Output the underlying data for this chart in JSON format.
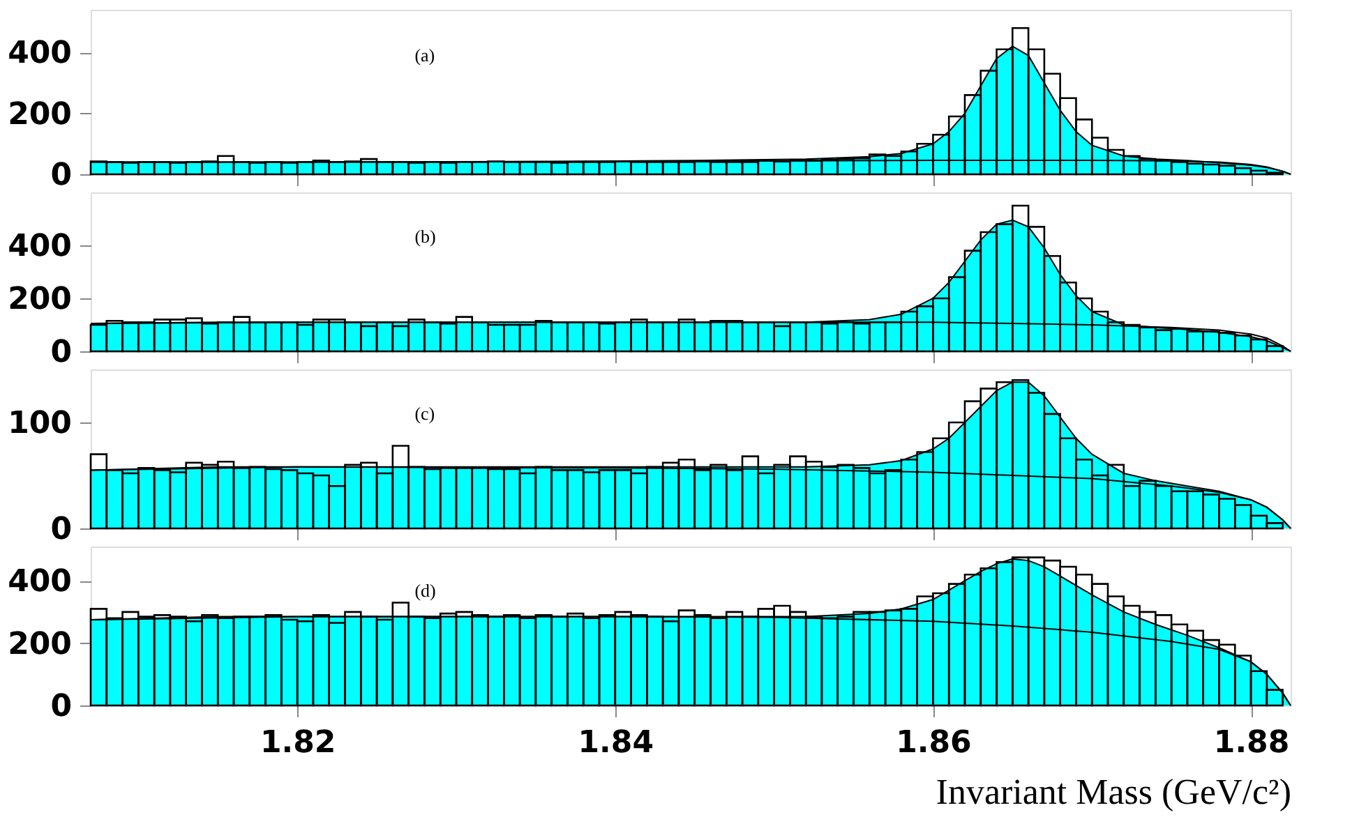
{
  "chart_data": [
    {
      "type": "histogram",
      "annotations": [
        "(a)"
      ],
      "tick_labels": "y",
      "color": "#000000",
      "bins": [
        1.807,
        1.808,
        1.809,
        1.81,
        1.811,
        1.812,
        1.813,
        1.814,
        1.815,
        1.816,
        1.817,
        1.818,
        1.819,
        1.82,
        1.821,
        1.822,
        1.823,
        1.824,
        1.825,
        1.826,
        1.827,
        1.828,
        1.829,
        1.83,
        1.831,
        1.832,
        1.833,
        1.834,
        1.835,
        1.836,
        1.837,
        1.838,
        1.839,
        1.84,
        1.841,
        1.842,
        1.843,
        1.844,
        1.845,
        1.846,
        1.847,
        1.848,
        1.849,
        1.85,
        1.851,
        1.852,
        1.853,
        1.854,
        1.855,
        1.856,
        1.857,
        1.858,
        1.859,
        1.86,
        1.861,
        1.862,
        1.863,
        1.864,
        1.865,
        1.866,
        1.867,
        1.868,
        1.869,
        1.87,
        1.871,
        1.872,
        1.873,
        1.874,
        1.875,
        1.876,
        1.877,
        1.878,
        1.879,
        1.88,
        1.881,
        1.882
      ],
      "values": [
        42,
        40,
        38,
        40,
        40,
        38,
        40,
        42,
        60,
        40,
        38,
        40,
        38,
        40,
        45,
        40,
        42,
        50,
        40,
        40,
        38,
        40,
        38,
        40,
        40,
        42,
        40,
        40,
        40,
        38,
        40,
        40,
        40,
        42,
        40,
        40,
        40,
        40,
        42,
        40,
        40,
        40,
        45,
        42,
        45,
        45,
        48,
        50,
        52,
        65,
        60,
        75,
        100,
        130,
        190,
        260,
        340,
        410,
        480,
        410,
        330,
        250,
        180,
        120,
        80,
        60,
        50,
        45,
        40,
        35,
        32,
        28,
        20,
        12,
        5
      ],
      "series": [
        {
          "type": "area",
          "color": "#00ffff",
          "x": [
            1.807,
            1.815,
            1.825,
            1.835,
            1.845,
            1.852,
            1.856,
            1.858,
            1.86,
            1.861,
            1.862,
            1.863,
            1.864,
            1.865,
            1.866,
            1.867,
            1.868,
            1.869,
            1.87,
            1.872,
            1.874,
            1.876,
            1.878,
            1.88,
            1.881,
            1.882,
            1.8825
          ],
          "values": [
            40,
            40,
            40,
            42,
            45,
            50,
            58,
            68,
            100,
            140,
            200,
            290,
            380,
            420,
            390,
            300,
            210,
            140,
            95,
            60,
            50,
            45,
            38,
            30,
            22,
            10,
            0
          ]
        },
        {
          "type": "line",
          "color": "#000000",
          "x": [
            1.807,
            1.82,
            1.84,
            1.85,
            1.86,
            1.865,
            1.87,
            1.875,
            1.878,
            1.88,
            1.881,
            1.882,
            1.8825
          ],
          "values": [
            40,
            40,
            42,
            44,
            46,
            46,
            46,
            44,
            40,
            32,
            24,
            10,
            0
          ]
        }
      ],
      "xlim": [
        1.807,
        1.8825
      ],
      "xticks": [
        1.82,
        1.84,
        1.86,
        1.88
      ],
      "ylim": [
        0,
        540
      ],
      "yticks": [
        0,
        200,
        400
      ]
    },
    {
      "type": "histogram",
      "annotations": [
        "(b)"
      ],
      "tick_labels": "y",
      "color": "#000000",
      "bins": [
        1.807,
        1.808,
        1.809,
        1.81,
        1.811,
        1.812,
        1.813,
        1.814,
        1.815,
        1.816,
        1.817,
        1.818,
        1.819,
        1.82,
        1.821,
        1.822,
        1.823,
        1.824,
        1.825,
        1.826,
        1.827,
        1.828,
        1.829,
        1.83,
        1.831,
        1.832,
        1.833,
        1.834,
        1.835,
        1.836,
        1.837,
        1.838,
        1.839,
        1.84,
        1.841,
        1.842,
        1.843,
        1.844,
        1.845,
        1.846,
        1.847,
        1.848,
        1.849,
        1.85,
        1.851,
        1.852,
        1.853,
        1.854,
        1.855,
        1.856,
        1.857,
        1.858,
        1.859,
        1.86,
        1.861,
        1.862,
        1.863,
        1.864,
        1.865,
        1.866,
        1.867,
        1.868,
        1.869,
        1.87,
        1.871,
        1.872,
        1.873,
        1.874,
        1.875,
        1.876,
        1.877,
        1.878,
        1.879,
        1.88,
        1.881,
        1.882
      ],
      "values": [
        100,
        115,
        110,
        110,
        120,
        120,
        125,
        105,
        110,
        130,
        110,
        110,
        110,
        100,
        120,
        120,
        110,
        95,
        110,
        95,
        120,
        110,
        105,
        130,
        110,
        100,
        100,
        100,
        115,
        110,
        110,
        110,
        105,
        110,
        120,
        110,
        110,
        120,
        110,
        115,
        115,
        110,
        110,
        95,
        110,
        110,
        105,
        110,
        105,
        110,
        110,
        150,
        170,
        200,
        280,
        380,
        450,
        480,
        550,
        470,
        360,
        260,
        200,
        150,
        110,
        100,
        90,
        80,
        85,
        75,
        75,
        70,
        60,
        45,
        20
      ],
      "series": [
        {
          "type": "area",
          "color": "#00ffff",
          "x": [
            1.807,
            1.815,
            1.825,
            1.835,
            1.845,
            1.852,
            1.856,
            1.858,
            1.86,
            1.861,
            1.862,
            1.863,
            1.864,
            1.865,
            1.866,
            1.867,
            1.868,
            1.869,
            1.87,
            1.872,
            1.874,
            1.876,
            1.878,
            1.88,
            1.881,
            1.882,
            1.8825
          ],
          "values": [
            105,
            110,
            110,
            110,
            110,
            110,
            120,
            140,
            200,
            260,
            340,
            420,
            480,
            495,
            470,
            390,
            290,
            210,
            150,
            100,
            90,
            82,
            72,
            55,
            40,
            15,
            0
          ]
        },
        {
          "type": "line",
          "color": "#000000",
          "x": [
            1.807,
            1.82,
            1.84,
            1.85,
            1.86,
            1.865,
            1.87,
            1.875,
            1.878,
            1.88,
            1.881,
            1.882,
            1.8825
          ],
          "values": [
            105,
            110,
            110,
            110,
            110,
            105,
            100,
            90,
            80,
            65,
            50,
            20,
            0
          ]
        }
      ],
      "xlim": [
        1.807,
        1.8825
      ],
      "xticks": [
        1.82,
        1.84,
        1.86,
        1.88
      ],
      "ylim": [
        0,
        600
      ],
      "yticks": [
        0,
        200,
        400
      ]
    },
    {
      "type": "histogram",
      "annotations": [
        "(c)"
      ],
      "tick_labels": "y",
      "color": "#000000",
      "bins": [
        1.807,
        1.808,
        1.809,
        1.81,
        1.811,
        1.812,
        1.813,
        1.814,
        1.815,
        1.816,
        1.817,
        1.818,
        1.819,
        1.82,
        1.821,
        1.822,
        1.823,
        1.824,
        1.825,
        1.826,
        1.827,
        1.828,
        1.829,
        1.83,
        1.831,
        1.832,
        1.833,
        1.834,
        1.835,
        1.836,
        1.837,
        1.838,
        1.839,
        1.84,
        1.841,
        1.842,
        1.843,
        1.844,
        1.845,
        1.846,
        1.847,
        1.848,
        1.849,
        1.85,
        1.851,
        1.852,
        1.853,
        1.854,
        1.855,
        1.856,
        1.857,
        1.858,
        1.859,
        1.86,
        1.861,
        1.862,
        1.863,
        1.864,
        1.865,
        1.866,
        1.867,
        1.868,
        1.869,
        1.87,
        1.871,
        1.872,
        1.873,
        1.874,
        1.875,
        1.876,
        1.877,
        1.878,
        1.879,
        1.88,
        1.881,
        1.882
      ],
      "values": [
        70,
        55,
        52,
        57,
        55,
        53,
        62,
        60,
        63,
        57,
        58,
        56,
        55,
        52,
        50,
        40,
        60,
        62,
        52,
        78,
        58,
        56,
        57,
        57,
        57,
        56,
        56,
        52,
        58,
        55,
        55,
        53,
        55,
        55,
        52,
        58,
        62,
        65,
        55,
        60,
        55,
        68,
        52,
        60,
        68,
        63,
        58,
        60,
        57,
        52,
        55,
        65,
        72,
        85,
        100,
        120,
        132,
        138,
        140,
        128,
        108,
        85,
        65,
        50,
        60,
        40,
        45,
        40,
        35,
        35,
        32,
        28,
        22,
        12,
        5
      ],
      "series": [
        {
          "type": "area",
          "color": "#00ffff",
          "x": [
            1.807,
            1.815,
            1.825,
            1.835,
            1.845,
            1.852,
            1.856,
            1.858,
            1.86,
            1.861,
            1.862,
            1.863,
            1.864,
            1.865,
            1.866,
            1.867,
            1.868,
            1.869,
            1.87,
            1.872,
            1.874,
            1.876,
            1.878,
            1.88,
            1.881,
            1.882,
            1.8825
          ],
          "values": [
            55,
            58,
            58,
            58,
            58,
            58,
            60,
            64,
            75,
            85,
            100,
            115,
            130,
            138,
            138,
            125,
            105,
            85,
            70,
            52,
            45,
            40,
            35,
            27,
            20,
            8,
            0
          ]
        },
        {
          "type": "line",
          "color": "#000000",
          "x": [
            1.807,
            1.82,
            1.84,
            1.85,
            1.86,
            1.865,
            1.87,
            1.875,
            1.878,
            1.88,
            1.881,
            1.882,
            1.8825
          ],
          "values": [
            55,
            58,
            57,
            56,
            53,
            50,
            47,
            40,
            34,
            27,
            20,
            8,
            0
          ]
        }
      ],
      "xlim": [
        1.807,
        1.8825
      ],
      "xticks": [
        1.82,
        1.84,
        1.86,
        1.88
      ],
      "ylim": [
        0,
        150
      ],
      "yticks": [
        0,
        100
      ]
    },
    {
      "type": "histogram",
      "annotations": [
        "(d)"
      ],
      "xlabel": "Invariant Mass (GeV/c²)",
      "color": "#000000",
      "bins": [
        1.807,
        1.808,
        1.809,
        1.81,
        1.811,
        1.812,
        1.813,
        1.814,
        1.815,
        1.816,
        1.817,
        1.818,
        1.819,
        1.82,
        1.821,
        1.822,
        1.823,
        1.824,
        1.825,
        1.826,
        1.827,
        1.828,
        1.829,
        1.83,
        1.831,
        1.832,
        1.833,
        1.834,
        1.835,
        1.836,
        1.837,
        1.838,
        1.839,
        1.84,
        1.841,
        1.842,
        1.843,
        1.844,
        1.845,
        1.846,
        1.847,
        1.848,
        1.849,
        1.85,
        1.851,
        1.852,
        1.853,
        1.854,
        1.855,
        1.856,
        1.857,
        1.858,
        1.859,
        1.86,
        1.861,
        1.862,
        1.863,
        1.864,
        1.865,
        1.866,
        1.867,
        1.868,
        1.869,
        1.87,
        1.871,
        1.872,
        1.873,
        1.874,
        1.875,
        1.876,
        1.877,
        1.878,
        1.879,
        1.88,
        1.881,
        1.882
      ],
      "values": [
        310,
        280,
        300,
        285,
        290,
        285,
        270,
        290,
        280,
        285,
        285,
        290,
        275,
        270,
        290,
        265,
        300,
        285,
        275,
        330,
        285,
        280,
        295,
        300,
        290,
        285,
        290,
        280,
        290,
        285,
        295,
        280,
        290,
        300,
        290,
        285,
        270,
        305,
        290,
        280,
        300,
        285,
        310,
        320,
        300,
        285,
        280,
        285,
        300,
        300,
        305,
        310,
        350,
        360,
        390,
        420,
        440,
        460,
        475,
        475,
        465,
        445,
        420,
        390,
        350,
        320,
        300,
        290,
        260,
        240,
        210,
        195,
        160,
        110,
        50
      ],
      "series": [
        {
          "type": "area",
          "color": "#00ffff",
          "x": [
            1.807,
            1.815,
            1.825,
            1.835,
            1.845,
            1.852,
            1.856,
            1.858,
            1.86,
            1.861,
            1.862,
            1.863,
            1.864,
            1.865,
            1.866,
            1.867,
            1.868,
            1.869,
            1.87,
            1.872,
            1.874,
            1.876,
            1.878,
            1.88,
            1.881,
            1.882,
            1.8825
          ],
          "values": [
            275,
            285,
            285,
            285,
            285,
            285,
            295,
            310,
            340,
            370,
            400,
            430,
            455,
            470,
            465,
            445,
            415,
            385,
            355,
            300,
            260,
            225,
            185,
            140,
            100,
            40,
            0
          ]
        },
        {
          "type": "line",
          "color": "#000000",
          "x": [
            1.807,
            1.82,
            1.84,
            1.85,
            1.86,
            1.865,
            1.87,
            1.875,
            1.878,
            1.88,
            1.881,
            1.882,
            1.8825
          ],
          "values": [
            275,
            285,
            285,
            283,
            270,
            255,
            235,
            205,
            180,
            140,
            100,
            40,
            0
          ]
        }
      ],
      "xlim": [
        1.807,
        1.8825
      ],
      "xticks": [
        1.82,
        1.84,
        1.86,
        1.88
      ],
      "ylim": [
        0,
        510
      ],
      "yticks": [
        0,
        200,
        400
      ]
    }
  ]
}
